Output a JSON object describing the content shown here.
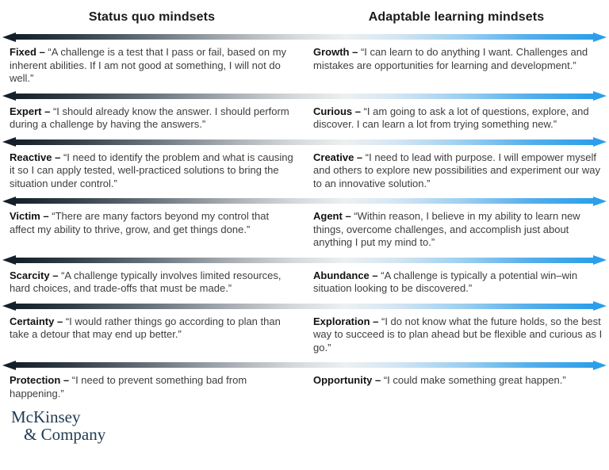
{
  "headers": {
    "status_quo": "Status quo mindsets",
    "adaptable": "Adaptable learning mindsets"
  },
  "arrow": {
    "left_color": "#141f2a",
    "mid_color": "#edf0f1",
    "right_color": "#2b9fe9",
    "direction": "double-headed"
  },
  "rows": [
    {
      "left": {
        "term": "Fixed –",
        "quote": "“A challenge is a test that I pass or fail, based on my inherent abilities. If I am not good at something, I will not do well.”"
      },
      "right": {
        "term": "Growth –",
        "quote": "“I can learn to do anything I want. Challenges and mistakes are opportunities for learning and development.”"
      }
    },
    {
      "left": {
        "term": "Expert –",
        "quote": "“I should already know the answer. I should perform during a challenge by having the answers.”"
      },
      "right": {
        "term": "Curious –",
        "quote": "“I am going to ask a lot of questions, explore, and discover. I can learn a lot from trying something new.”"
      }
    },
    {
      "left": {
        "term": "Reactive –",
        "quote": "“I need to identify the problem and what is causing it so I can apply tested, well-practiced solutions to bring the situation under control.”"
      },
      "right": {
        "term": "Creative –",
        "quote": "“I need to lead with purpose. I will empower myself and others to explore new possibilities and experiment our way to an innovative solution.”"
      }
    },
    {
      "left": {
        "term": "Victim –",
        "quote": "“There are many factors beyond my control that affect my ability to thrive, grow, and get things done.”"
      },
      "right": {
        "term": "Agent –",
        "quote": "“Within reason, I believe in my ability to learn new things, overcome challenges, and accomplish just about anything I put my mind to.”"
      }
    },
    {
      "left": {
        "term": "Scarcity –",
        "quote": "“A challenge typically involves limited resources, hard choices, and trade-offs that must be made.”"
      },
      "right": {
        "term": "Abundance –",
        "quote": "“A challenge is typically a potential win–win situation looking to be discovered.”"
      }
    },
    {
      "left": {
        "term": "Certainty –",
        "quote": "“I would rather things go according to plan than take a detour that may end up better.”"
      },
      "right": {
        "term": "Exploration –",
        "quote": "“I do not know what the future holds, so the best way to succeed is to plan ahead but be flexible and curious as I go.”"
      }
    },
    {
      "left": {
        "term": "Protection –",
        "quote": "“I need to prevent something bad from happening.”"
      },
      "right": {
        "term": "Opportunity –",
        "quote": "“I could make something great happen.”"
      }
    }
  ],
  "logo": {
    "line1": "McKinsey",
    "line2": "& Company",
    "color": "#1f3a52"
  }
}
